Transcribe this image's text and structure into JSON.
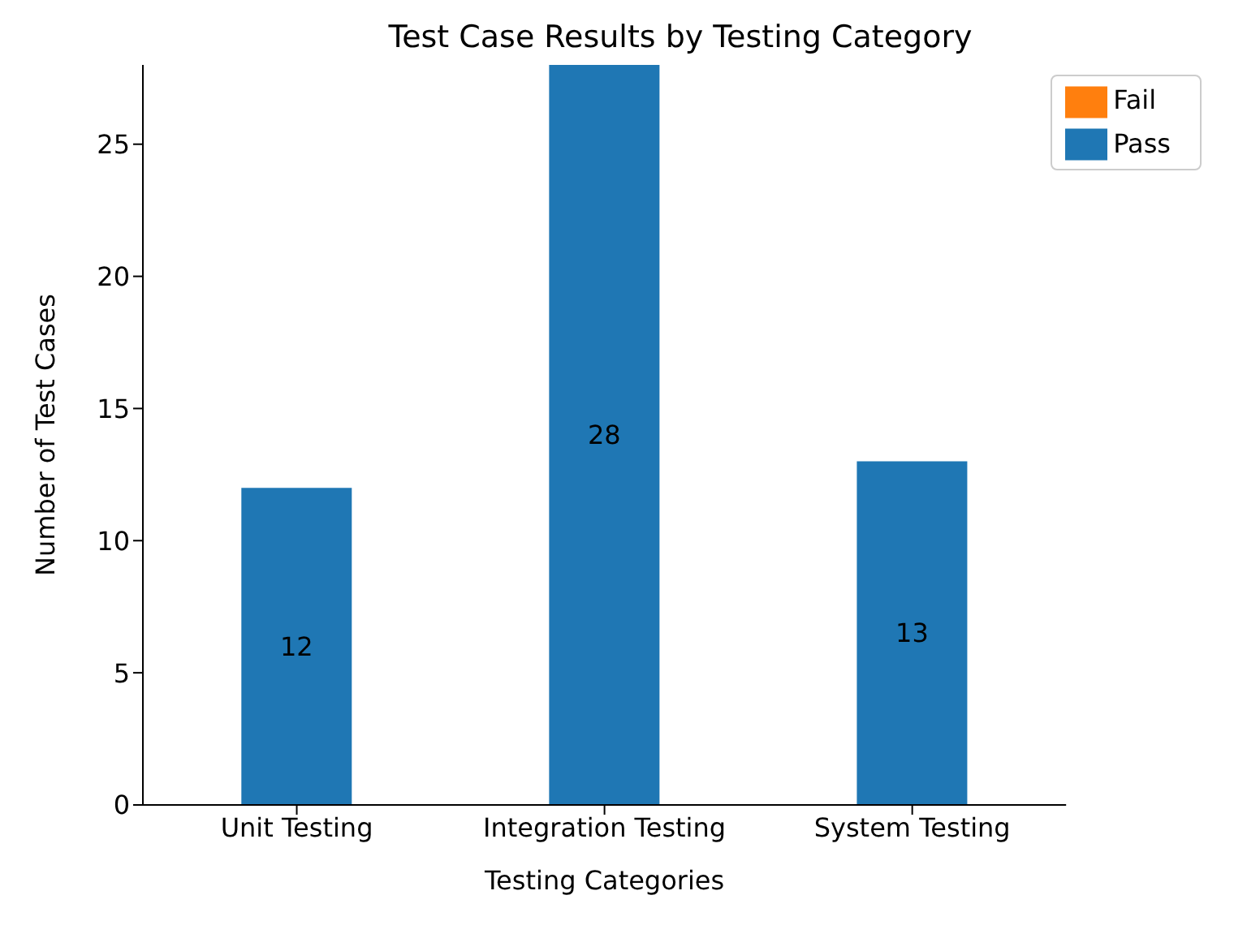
{
  "chart_data": {
    "type": "bar",
    "title": "Test Case Results by Testing Category",
    "xlabel": "Testing Categories",
    "ylabel": "Number of Test Cases",
    "categories": [
      "Unit Testing",
      "Integration Testing",
      "System Testing"
    ],
    "series": [
      {
        "name": "Pass",
        "color": "#1f77b4",
        "values": [
          12,
          28,
          13
        ],
        "value_labels": [
          "12",
          "28",
          "13"
        ]
      },
      {
        "name": "Fail",
        "color": "#ff7f0e",
        "values": [
          0,
          0,
          0
        ]
      }
    ],
    "stacked": true,
    "ylim": [
      0,
      28
    ],
    "yticks": [
      0,
      5,
      10,
      15,
      20,
      25
    ],
    "grid": false,
    "legend": "top right"
  }
}
